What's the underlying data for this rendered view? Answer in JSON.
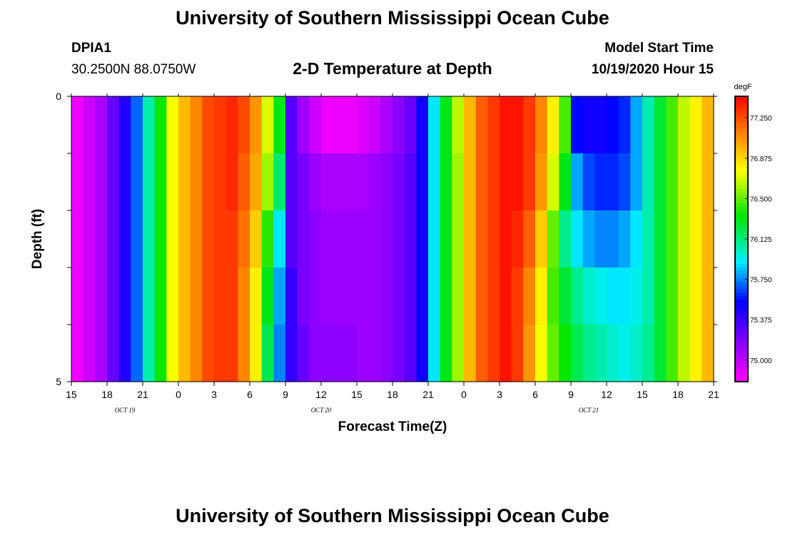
{
  "header": {
    "title": "University of Southern Mississippi Ocean Cube",
    "station": "DPIA1",
    "coords": "30.2500N 88.0750W",
    "subtitle": "2-D Temperature at Depth",
    "model_start_label": "Model Start Time",
    "model_start_value": "10/19/2020 Hour 15"
  },
  "footer": {
    "title": "University of Southern Mississippi Ocean Cube"
  },
  "chart_data": {
    "type": "heatmap",
    "title": "2-D Temperature at Depth",
    "xlabel": "Forecast Time(Z)",
    "ylabel": "Depth (ft)",
    "x_start_hour": 15,
    "x_hours": 54,
    "xlim": [
      0,
      54
    ],
    "ylim": [
      0,
      5
    ],
    "x_tick_labels": [
      "15",
      "18",
      "21",
      "0",
      "3",
      "6",
      "9",
      "12",
      "15",
      "18",
      "21",
      "0",
      "3",
      "6",
      "9",
      "12",
      "15",
      "18",
      "21"
    ],
    "y_tick_labels": [
      "0",
      "5"
    ],
    "date_labels": [
      {
        "text": "OCT 19",
        "hour": 4.5
      },
      {
        "text": "OCT 20",
        "hour": 21
      },
      {
        "text": "OCT 21",
        "hour": 43.5
      }
    ],
    "colorbar": {
      "unit": "degF",
      "vmin": 74.8,
      "vmax": 77.45,
      "ticks": [
        "77.250",
        "76.875",
        "76.500",
        "76.125",
        "75.750",
        "75.375",
        "75.000"
      ]
    },
    "depth_layers": 5,
    "profiles": [
      [
        74.85,
        74.95,
        75.05,
        75.25,
        75.45,
        75.7,
        76.05,
        76.35,
        76.75,
        76.95,
        77.1,
        77.25,
        77.3,
        77.35,
        77.25,
        77.05,
        76.7,
        76.3,
        75.3,
        75.1,
        74.95,
        74.85,
        74.85,
        74.85,
        74.9,
        74.95,
        75.05,
        75.15,
        75.25,
        75.5,
        75.9,
        76.3,
        76.65,
        76.95,
        77.2,
        77.3,
        77.4,
        77.4,
        77.3,
        77.1,
        76.8,
        76.45,
        75.55,
        75.5,
        75.5,
        75.55,
        75.6,
        75.8,
        76.05,
        76.25,
        76.45,
        76.65,
        76.8,
        76.95
      ],
      [
        74.85,
        74.95,
        75.05,
        75.25,
        75.45,
        75.7,
        76.05,
        76.35,
        76.75,
        76.95,
        77.1,
        77.25,
        77.3,
        77.35,
        77.2,
        77.0,
        76.6,
        76.15,
        75.3,
        75.2,
        75.1,
        75.05,
        75.05,
        75.05,
        75.05,
        75.1,
        75.15,
        75.2,
        75.3,
        75.5,
        75.9,
        76.3,
        76.6,
        76.95,
        77.2,
        77.3,
        77.4,
        77.4,
        77.3,
        77.05,
        76.7,
        76.3,
        75.8,
        75.65,
        75.6,
        75.6,
        75.65,
        75.8,
        76.05,
        76.25,
        76.45,
        76.65,
        76.8,
        76.95
      ],
      [
        74.85,
        74.95,
        75.05,
        75.25,
        75.45,
        75.7,
        76.05,
        76.35,
        76.75,
        76.95,
        77.1,
        77.25,
        77.3,
        77.3,
        77.15,
        76.9,
        76.4,
        75.9,
        75.3,
        75.2,
        75.15,
        75.1,
        75.1,
        75.1,
        75.1,
        75.1,
        75.15,
        75.2,
        75.3,
        75.5,
        75.9,
        76.3,
        76.6,
        76.95,
        77.2,
        77.3,
        77.4,
        77.35,
        77.2,
        76.9,
        76.5,
        76.1,
        75.9,
        75.8,
        75.75,
        75.75,
        75.8,
        75.9,
        76.05,
        76.25,
        76.45,
        76.65,
        76.8,
        76.95
      ],
      [
        74.85,
        74.95,
        75.05,
        75.25,
        75.45,
        75.7,
        76.05,
        76.35,
        76.75,
        76.95,
        77.1,
        77.25,
        77.3,
        77.3,
        77.1,
        76.8,
        76.3,
        75.8,
        75.4,
        75.2,
        75.15,
        75.1,
        75.1,
        75.1,
        75.1,
        75.1,
        75.15,
        75.2,
        75.3,
        75.5,
        75.9,
        76.3,
        76.6,
        76.95,
        77.2,
        77.3,
        77.4,
        77.3,
        77.1,
        76.8,
        76.45,
        76.25,
        76.1,
        76.0,
        75.95,
        75.9,
        75.9,
        75.95,
        76.05,
        76.25,
        76.45,
        76.65,
        76.8,
        76.95
      ],
      [
        74.85,
        74.95,
        75.05,
        75.25,
        75.45,
        75.7,
        76.05,
        76.35,
        76.75,
        76.95,
        77.1,
        77.25,
        77.3,
        77.3,
        77.1,
        76.8,
        76.2,
        75.75,
        75.4,
        75.25,
        75.15,
        75.15,
        75.15,
        75.15,
        75.1,
        75.1,
        75.15,
        75.2,
        75.3,
        75.5,
        75.9,
        76.3,
        76.6,
        76.95,
        77.2,
        77.3,
        77.4,
        77.3,
        77.05,
        76.75,
        76.5,
        76.35,
        76.2,
        76.1,
        76.05,
        76.0,
        75.95,
        76.0,
        76.1,
        76.25,
        76.45,
        76.65,
        76.8,
        76.95
      ]
    ]
  }
}
